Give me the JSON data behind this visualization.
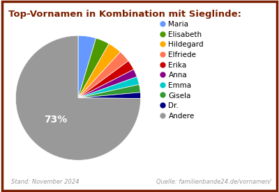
{
  "title": "Top-Vornamen in Kombination mit Sieglinde:",
  "labels": [
    "Maria",
    "Elisabeth",
    "Hildegard",
    "Elfriede",
    "Erika",
    "Anna",
    "Emma",
    "Gisela",
    "Dr.",
    "Andere"
  ],
  "values": [
    4.5,
    3.5,
    3.5,
    3.0,
    2.5,
    2.0,
    2.0,
    2.0,
    1.5,
    73.0
  ],
  "colors": [
    "#6699FF",
    "#4C9900",
    "#FFAA00",
    "#FF7755",
    "#CC0000",
    "#880088",
    "#00CCCC",
    "#339933",
    "#000080",
    "#999999"
  ],
  "pct_label": "73%",
  "pct_label_index": 9,
  "title_color": "#7B2000",
  "footer_left": "Stand: November 2024",
  "footer_right": "Quelle: familienbande24.de/vornamen/",
  "footer_color": "#999999",
  "background_color": "#ffffff",
  "border_color": "#7B2000",
  "startangle": 90
}
